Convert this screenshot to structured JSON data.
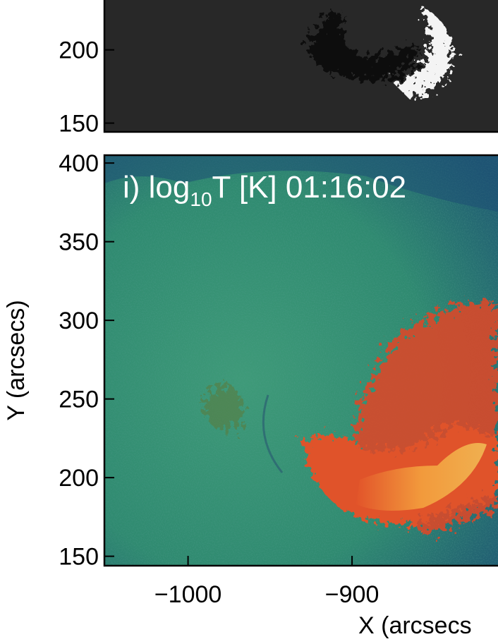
{
  "chart_data": [
    {
      "type": "image",
      "ylim": [
        144,
        235
      ],
      "yticks": [
        150,
        200
      ]
    },
    {
      "type": "image",
      "title_prefix": "i) log",
      "title_subscript": "10",
      "title_suffix": "T [K]  01:16:02",
      "xlabel": "X (arcsecs",
      "ylabel": "Y (arcsecs)",
      "xlim": [
        -1051,
        -811
      ],
      "xticks": [
        {
          "value": -1000,
          "label": "−1000"
        },
        {
          "value": -900,
          "label": "−900"
        }
      ],
      "ylim": [
        144,
        405
      ],
      "yticks": [
        150,
        200,
        250,
        300,
        350,
        400
      ]
    }
  ]
}
